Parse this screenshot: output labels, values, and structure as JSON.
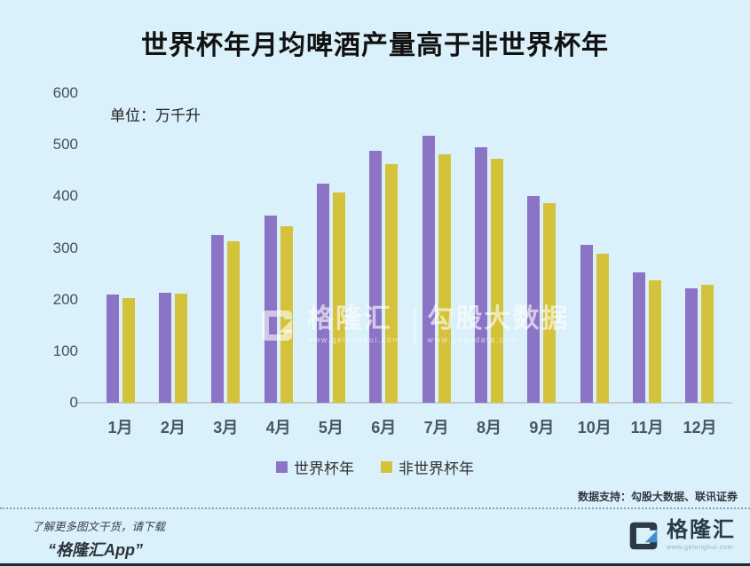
{
  "title": "世界杯年月均啤酒产量高于非世界杯年",
  "unit_label": "单位：万千升",
  "chart_data": {
    "type": "bar",
    "categories": [
      "1月",
      "2月",
      "3月",
      "4月",
      "5月",
      "6月",
      "7月",
      "8月",
      "9月",
      "10月",
      "11月",
      "12月"
    ],
    "series": [
      {
        "name": "世界杯年",
        "color": "#8b74c5",
        "values": [
          210,
          214,
          325,
          362,
          425,
          488,
          518,
          495,
          400,
          306,
          252,
          222
        ]
      },
      {
        "name": "非世界杯年",
        "color": "#d4c23a",
        "values": [
          203,
          212,
          313,
          342,
          408,
          462,
          482,
          472,
          386,
          288,
          238,
          228
        ]
      }
    ],
    "ylim": [
      0,
      600
    ],
    "ytick_step": 100,
    "grid": false,
    "legend_position": "bottom"
  },
  "watermark": {
    "brand": "格隆汇",
    "brand_url": "www.gelonghui.com",
    "partner": "勾股大数据",
    "partner_url": "www.gogudata.com"
  },
  "footer": {
    "data_support": "数据支持：勾股大数据、联讯证券",
    "promo_line1": "了解更多图文干货，请下载",
    "promo_line2": "“格隆汇App”",
    "logo_name": "格隆汇",
    "logo_url": "www.gelonghui.com"
  },
  "colors": {
    "background": "#daf0fa",
    "bar_world_cup": "#8b74c5",
    "bar_non_world_cup": "#d4c23a",
    "logo_navy": "#2b3948",
    "logo_blue": "#3f8fd2",
    "axis_line": "#c2ccd2"
  }
}
